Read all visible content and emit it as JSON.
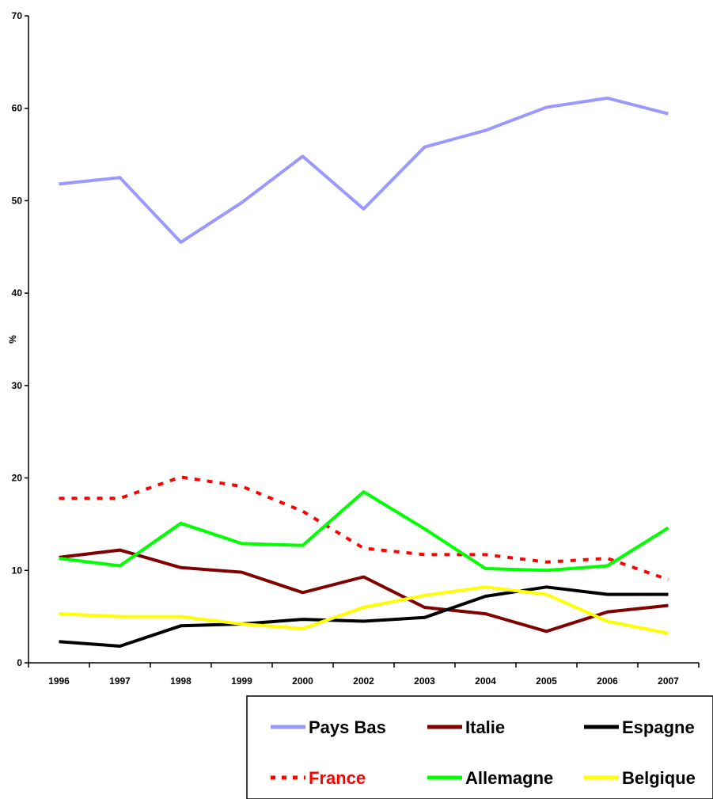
{
  "chart_data": {
    "type": "line",
    "title": "",
    "xlabel": "",
    "ylabel": "%",
    "ylim": [
      0,
      70
    ],
    "yticks": [
      0,
      10,
      20,
      30,
      40,
      50,
      60,
      70
    ],
    "grid": false,
    "legend_position": "bottom-right",
    "categories": [
      "1996",
      "1997",
      "1998",
      "1999",
      "2000",
      "2002",
      "2003",
      "2004",
      "2005",
      "2006",
      "2007"
    ],
    "series": [
      {
        "name": "Pays Bas",
        "color": "#9999ff",
        "dashed": false,
        "label_color": "#000000",
        "values": [
          51.8,
          52.5,
          45.5,
          49.8,
          54.8,
          49.1,
          55.8,
          57.6,
          60.1,
          61.1,
          59.4
        ]
      },
      {
        "name": "Italie",
        "color": "#800000",
        "dashed": false,
        "label_color": "#000000",
        "values": [
          11.4,
          12.2,
          10.3,
          9.8,
          7.6,
          9.3,
          6.0,
          5.3,
          3.4,
          5.5,
          6.2
        ]
      },
      {
        "name": "Espagne",
        "color": "#000000",
        "dashed": false,
        "label_color": "#000000",
        "values": [
          2.3,
          1.8,
          4.0,
          4.2,
          4.7,
          4.5,
          4.9,
          7.2,
          8.2,
          7.4,
          7.4
        ]
      },
      {
        "name": "France",
        "color": "#ff0000",
        "dashed": true,
        "label_color": "#ff0000",
        "values": [
          17.8,
          17.8,
          20.1,
          19.1,
          16.4,
          12.4,
          11.7,
          11.7,
          10.9,
          11.3,
          9.0
        ]
      },
      {
        "name": "Allemagne",
        "color": "#00ff00",
        "dashed": false,
        "label_color": "#000000",
        "values": [
          11.3,
          10.5,
          15.1,
          12.9,
          12.7,
          18.5,
          14.5,
          10.2,
          10.0,
          10.5,
          14.6
        ]
      },
      {
        "name": "Belgique",
        "color": "#ffff00",
        "dashed": false,
        "label_color": "#000000",
        "values": [
          5.3,
          5.0,
          5.0,
          4.2,
          3.7,
          6.0,
          7.3,
          8.2,
          7.4,
          4.5,
          3.2
        ]
      }
    ]
  }
}
